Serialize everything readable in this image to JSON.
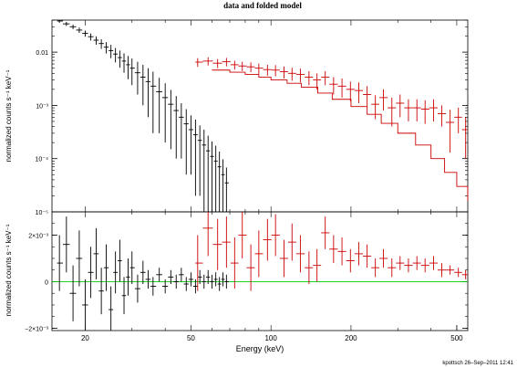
{
  "title": "data and folded model",
  "footer": "kpottsch 26–Sep–2011 12:41",
  "colors": {
    "frame": "#000000",
    "data1": "#000000",
    "data2": "#cc0000",
    "model2": "#cc0000",
    "zero": "#00cc00"
  },
  "chart_data": [
    {
      "type": "scatter",
      "panel": "top",
      "xlabel": "",
      "ylabel": "normalized counts s⁻¹ keV⁻¹",
      "xscale": "log",
      "yscale": "log",
      "xlim": [
        15,
        550
      ],
      "ylim": [
        1e-05,
        0.04
      ],
      "ytick_labels": [
        "0.01",
        "10⁻³",
        "10⁻⁴",
        "10⁻⁵"
      ],
      "ytick_values": [
        0.01,
        0.001,
        0.0001,
        1e-05
      ],
      "series": [
        {
          "style": "data-with-errors",
          "color": "#000000",
          "points": [
            [
              16.0,
              0.0385,
              0.003
            ],
            [
              17.0,
              0.034,
              0.003
            ],
            [
              18.0,
              0.03,
              0.003
            ],
            [
              19.0,
              0.026,
              0.003
            ],
            [
              20.0,
              0.0225,
              0.003
            ],
            [
              21.0,
              0.0195,
              0.003
            ],
            [
              22.0,
              0.0168,
              0.003
            ],
            [
              23.0,
              0.0145,
              0.003
            ],
            [
              24.0,
              0.0124,
              0.003
            ],
            [
              25.0,
              0.0107,
              0.003
            ],
            [
              26.0,
              0.0092,
              0.0028
            ],
            [
              27.0,
              0.0079,
              0.0028
            ],
            [
              28.0,
              0.0068,
              0.0027
            ],
            [
              29.0,
              0.0058,
              0.0027
            ],
            [
              30.0,
              0.005,
              0.0026
            ],
            [
              31.5,
              0.0041,
              0.0025
            ],
            [
              33.0,
              0.0034,
              0.0024
            ],
            [
              34.5,
              0.0028,
              0.0022
            ],
            [
              36.0,
              0.0023,
              0.002
            ],
            [
              38.0,
              0.0018,
              0.0015
            ],
            [
              40.0,
              0.0014,
              0.0012
            ],
            [
              42.0,
              0.00105,
              0.0009
            ],
            [
              44.0,
              0.0008,
              0.0007
            ],
            [
              46.0,
              0.0006,
              0.0005
            ],
            [
              48.0,
              0.00045,
              0.0004
            ],
            [
              50.0,
              0.00035,
              0.0003
            ],
            [
              52.0,
              0.00028,
              0.00026
            ],
            [
              54.0,
              0.00022,
              0.0002
            ],
            [
              56.0,
              0.00018,
              0.00017
            ],
            [
              58.0,
              0.00014,
              0.00013
            ],
            [
              60.0,
              0.00011,
              0.0001
            ],
            [
              62.0,
              9e-05,
              8.5e-05
            ],
            [
              64.0,
              7e-05,
              6.6e-05
            ],
            [
              66.0,
              5e-05,
              4.7e-05
            ],
            [
              68.0,
              3.5e-05,
              3.3e-05
            ]
          ]
        },
        {
          "style": "data-with-errors",
          "color": "#cc0000",
          "points": [
            [
              53,
              0.0065,
              0.0012
            ],
            [
              58,
              0.0068,
              0.0012
            ],
            [
              63,
              0.0062,
              0.0012
            ],
            [
              68,
              0.0066,
              0.0012
            ],
            [
              73,
              0.0058,
              0.0011
            ],
            [
              78,
              0.0055,
              0.0011
            ],
            [
              84,
              0.0053,
              0.0011
            ],
            [
              90,
              0.005,
              0.0011
            ],
            [
              97,
              0.0047,
              0.0011
            ],
            [
              104,
              0.0046,
              0.0011
            ],
            [
              112,
              0.0043,
              0.0011
            ],
            [
              120,
              0.004,
              0.0011
            ],
            [
              129,
              0.0038,
              0.0011
            ],
            [
              139,
              0.0034,
              0.001
            ],
            [
              149,
              0.003,
              0.001
            ],
            [
              160,
              0.0034,
              0.001
            ],
            [
              172,
              0.0025,
              0.0009
            ],
            [
              185,
              0.0023,
              0.0009
            ],
            [
              199,
              0.002,
              0.0008
            ],
            [
              214,
              0.0019,
              0.0008
            ],
            [
              230,
              0.0016,
              0.0007
            ],
            [
              247,
              0.00105,
              0.0005
            ],
            [
              265,
              0.0014,
              0.0006
            ],
            [
              285,
              0.0009,
              0.0005
            ],
            [
              306,
              0.0011,
              0.0005
            ],
            [
              329,
              0.0009,
              0.0004
            ],
            [
              354,
              0.0009,
              0.0004
            ],
            [
              380,
              0.00085,
              0.0004
            ],
            [
              409,
              0.0009,
              0.0004
            ],
            [
              439,
              0.0007,
              0.0003
            ],
            [
              472,
              0.00048,
              0.00035
            ],
            [
              507,
              0.0006,
              0.0003
            ],
            [
              540,
              0.00035,
              0.00025
            ]
          ]
        },
        {
          "style": "step-model",
          "color": "#cc0000",
          "points": [
            [
              60,
              0.0046
            ],
            [
              70,
              0.0042
            ],
            [
              80,
              0.0038
            ],
            [
              90,
              0.0034
            ],
            [
              100,
              0.003
            ],
            [
              115,
              0.0026
            ],
            [
              130,
              0.0022
            ],
            [
              150,
              0.0017
            ],
            [
              170,
              0.0013
            ],
            [
              200,
              0.00095
            ],
            [
              230,
              0.00068
            ],
            [
              260,
              0.00046
            ],
            [
              300,
              0.0003
            ],
            [
              350,
              0.00018
            ],
            [
              400,
              0.0001
            ],
            [
              450,
              5.5e-05
            ],
            [
              500,
              3e-05
            ],
            [
              550,
              1.6e-05
            ]
          ]
        }
      ]
    },
    {
      "type": "scatter",
      "panel": "bottom",
      "xlabel": "Energy (keV)",
      "ylabel": "normalized counts s⁻¹ keV⁻¹",
      "xscale": "log",
      "yscale": "linear",
      "xlim": [
        15,
        550
      ],
      "ylim": [
        -0.0021,
        0.003
      ],
      "ytick_labels": [
        "2×10⁻³",
        "0",
        "−2×10⁻³"
      ],
      "ytick_values": [
        0.002,
        0,
        -0.002
      ],
      "xtick_labels": [
        "20",
        "50",
        "100",
        "200",
        "500"
      ],
      "xtick_values": [
        20,
        50,
        100,
        200,
        500
      ],
      "series": [
        {
          "style": "residual-with-errors",
          "color": "#000000",
          "points": [
            [
              16.0,
              0.0008,
              0.0012
            ],
            [
              17.0,
              0.0016,
              0.0012
            ],
            [
              18.0,
              -0.0005,
              0.0012
            ],
            [
              19.0,
              0.001,
              0.0012
            ],
            [
              20.0,
              -0.001,
              0.0011
            ],
            [
              21.0,
              0.0004,
              0.0011
            ],
            [
              22.0,
              0.0012,
              0.0011
            ],
            [
              23.0,
              -0.0004,
              0.001
            ],
            [
              24.0,
              0.0006,
              0.001
            ],
            [
              25.0,
              -0.0012,
              0.001
            ],
            [
              26.0,
              0.0004,
              0.0009
            ],
            [
              27.0,
              0.0009,
              0.0009
            ],
            [
              28.0,
              -0.0006,
              0.0008
            ],
            [
              29.0,
              0.0002,
              0.0008
            ],
            [
              30.0,
              0.0006,
              0.0007
            ],
            [
              31.5,
              -0.0003,
              0.0006
            ],
            [
              33.0,
              0.0004,
              0.0005
            ],
            [
              34.5,
              0.0001,
              0.0004
            ],
            [
              36.0,
              -0.0002,
              0.0004
            ],
            [
              38.0,
              0.0003,
              0.0003
            ],
            [
              40.0,
              -0.0002,
              0.0003
            ],
            [
              42.0,
              0.0002,
              0.0003
            ],
            [
              44.0,
              0.0,
              0.0003
            ],
            [
              46.0,
              0.0003,
              0.0003
            ],
            [
              48.0,
              -0.0001,
              0.0003
            ],
            [
              50.0,
              0.0001,
              0.0003
            ],
            [
              52.0,
              -0.0002,
              0.0003
            ],
            [
              54.0,
              0.0002,
              0.0003
            ],
            [
              56.0,
              0.0,
              0.0003
            ],
            [
              58.0,
              0.0002,
              0.0003
            ],
            [
              60.0,
              0.0,
              0.0003
            ],
            [
              62.0,
              0.0001,
              0.0003
            ],
            [
              64.0,
              -0.0001,
              0.0003
            ],
            [
              66.0,
              0.0001,
              0.0003
            ],
            [
              68.0,
              0.0,
              0.0003
            ]
          ]
        },
        {
          "style": "residual-with-errors",
          "color": "#cc0000",
          "points": [
            [
              53,
              0.0008,
              0.0012
            ],
            [
              58,
              0.0023,
              0.0012
            ],
            [
              63,
              0.0016,
              0.0011
            ],
            [
              68,
              0.0017,
              0.0011
            ],
            [
              73,
              0.0008,
              0.0011
            ],
            [
              78,
              0.002,
              0.001
            ],
            [
              84,
              0.0006,
              0.001
            ],
            [
              90,
              0.0012,
              0.001
            ],
            [
              97,
              0.0018,
              0.0009
            ],
            [
              104,
              0.002,
              0.0009
            ],
            [
              112,
              0.001,
              0.0008
            ],
            [
              120,
              0.0017,
              0.0008
            ],
            [
              129,
              0.0012,
              0.0008
            ],
            [
              139,
              0.0006,
              0.0007
            ],
            [
              149,
              0.0007,
              0.0007
            ],
            [
              160,
              0.0021,
              0.0007
            ],
            [
              172,
              0.0014,
              0.0006
            ],
            [
              185,
              0.0013,
              0.0006
            ],
            [
              199,
              0.0009,
              0.0005
            ],
            [
              214,
              0.0012,
              0.0005
            ],
            [
              230,
              0.0011,
              0.0005
            ],
            [
              247,
              0.0006,
              0.0004
            ],
            [
              265,
              0.001,
              0.0004
            ],
            [
              285,
              0.0006,
              0.0004
            ],
            [
              306,
              0.0008,
              0.0003
            ],
            [
              329,
              0.0007,
              0.0003
            ],
            [
              354,
              0.0008,
              0.0003
            ],
            [
              380,
              0.0007,
              0.0003
            ],
            [
              409,
              0.0008,
              0.0003
            ],
            [
              439,
              0.0005,
              0.0003
            ],
            [
              472,
              0.0005,
              0.0002
            ],
            [
              507,
              0.0004,
              0.0002
            ],
            [
              540,
              0.0003,
              0.0002
            ]
          ]
        },
        {
          "style": "zero-line",
          "color": "#00cc00",
          "points": [
            [
              15,
              0
            ],
            [
              550,
              0
            ]
          ]
        }
      ]
    }
  ]
}
